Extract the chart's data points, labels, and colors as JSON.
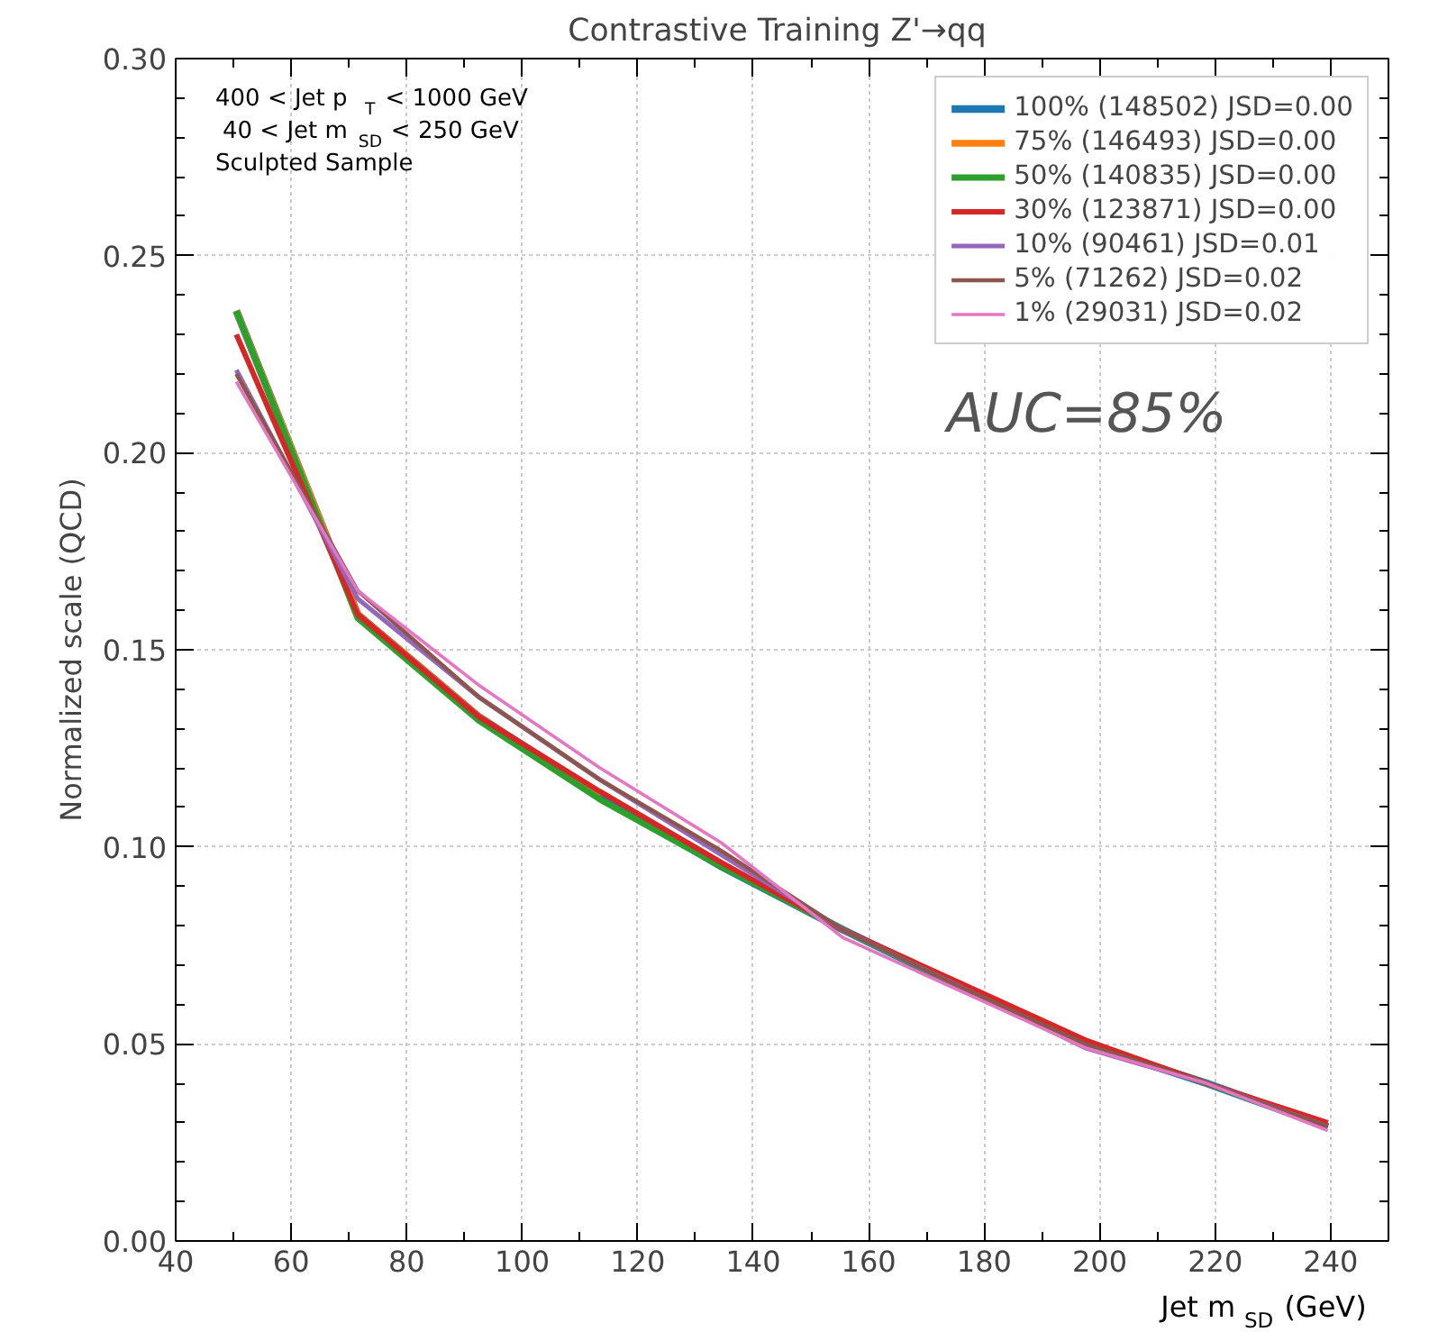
{
  "chart_data": {
    "type": "line",
    "title": "Contrastive Training  Z'→qq",
    "xlabel": "Jet m$_{SD}$ (GeV)",
    "ylabel": "Normalized scale (QCD)",
    "x": [
      50.5,
      71.5,
      92.5,
      113.5,
      134.5,
      155.5,
      176.5,
      197.5,
      218.5,
      239.5
    ],
    "series": [
      {
        "name": "100% (148502) JSD=0.00",
        "color": "#1f77b4",
        "values": [
          0.236,
          0.159,
          0.133,
          0.113,
          0.095,
          0.079,
          0.064,
          0.05,
          0.04,
          0.029
        ]
      },
      {
        "name": "75% (146493) JSD=0.00",
        "color": "#ff7f0e",
        "values": [
          0.236,
          0.159,
          0.133,
          0.113,
          null,
          null,
          null,
          null,
          null,
          null
        ]
      },
      {
        "name": "50% (140835) JSD=0.00",
        "color": "#2ca02c",
        "values": [
          0.236,
          0.158,
          0.132,
          0.112,
          0.095,
          0.079,
          0.064,
          0.05,
          0.04,
          0.029
        ]
      },
      {
        "name": "30% (123871) JSD=0.00",
        "color": "#d62728",
        "values": [
          0.23,
          0.159,
          0.133,
          0.114,
          0.096,
          0.079,
          0.065,
          0.051,
          0.04,
          0.03
        ]
      },
      {
        "name": "10% (90461) JSD=0.01",
        "color": "#9467bd",
        "values": [
          0.221,
          0.163,
          0.138,
          0.117,
          0.098,
          0.079,
          0.064,
          0.049,
          0.04,
          0.029
        ]
      },
      {
        "name": "5% (71262) JSD=0.02",
        "color": "#8c564b",
        "values": [
          0.22,
          0.165,
          0.138,
          0.117,
          0.099,
          0.079,
          0.064,
          0.05,
          0.04,
          0.029
        ]
      },
      {
        "name": "1% (29031) JSD=0.02",
        "color": "#e377c2",
        "values": [
          0.218,
          0.165,
          0.141,
          0.12,
          0.101,
          0.077,
          0.063,
          0.049,
          0.04,
          0.028
        ]
      }
    ],
    "xlim": [
      40,
      250
    ],
    "ylim": [
      0,
      0.3
    ],
    "xticks": [
      40,
      60,
      80,
      100,
      120,
      140,
      160,
      180,
      200,
      220,
      240
    ],
    "yticks": [
      {
        "value": 0,
        "label": "0.00"
      },
      {
        "value": 0.05,
        "label": "0.05"
      },
      {
        "value": 0.1,
        "label": "0.10"
      },
      {
        "value": 0.15,
        "label": "0.15"
      },
      {
        "value": 0.2,
        "label": "0.20"
      },
      {
        "value": 0.25,
        "label": "0.25"
      },
      {
        "value": 0.3,
        "label": "0.30"
      }
    ],
    "annotations": [
      "400 < Jet p$_{T}$ < 1000 GeV",
      "40 < Jet m$_{SD}$ < 250 GeV",
      "Sculpted Sample",
      "AUC=85%"
    ],
    "grid": true,
    "legend": "top right",
    "marker": "none",
    "line_style": "solid"
  }
}
